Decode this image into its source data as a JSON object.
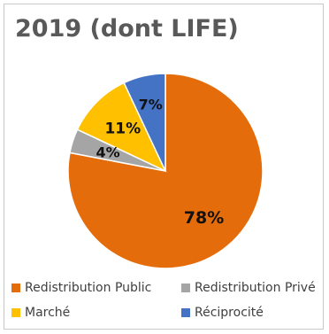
{
  "chart_data": {
    "type": "pie",
    "title": "2019 (dont LIFE)",
    "categories": [
      "Redistribution Public",
      "Redistribution Privé",
      "Marché",
      "Réciprocité"
    ],
    "values": [
      78,
      4,
      11,
      7
    ],
    "data_labels": [
      "78%",
      "4%",
      "11%",
      "7%"
    ],
    "colors": [
      "#E46C0A",
      "#A5A5A5",
      "#FFC000",
      "#4472C4"
    ],
    "legend_placement": "bottom"
  }
}
